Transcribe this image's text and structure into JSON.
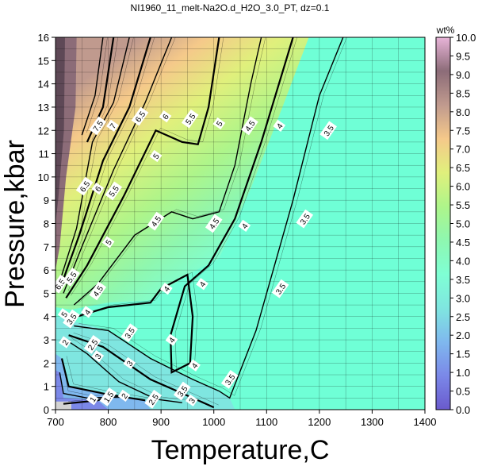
{
  "chart_data": {
    "type": "heatmap",
    "title": "NI1960_11_melt-Na2O.d_H2O_3.0_PT, dz=0.1",
    "xlabel": "Temperature,C",
    "ylabel": "Pressure,kbar",
    "xlim": [
      700,
      1400
    ],
    "ylim": [
      0,
      16
    ],
    "x_ticks": [
      "700",
      "800",
      "900",
      "1000",
      "1100",
      "1200",
      "1300",
      "1400"
    ],
    "y_ticks": [
      "0",
      "1",
      "2",
      "3",
      "4",
      "5",
      "6",
      "7",
      "8",
      "9",
      "10",
      "11",
      "12",
      "13",
      "14",
      "15",
      "16"
    ],
    "grid": true,
    "colorbar": {
      "label": "wt%",
      "range": [
        0.0,
        10.0
      ],
      "ticks": [
        "0.0",
        "0.5",
        "1.0",
        "1.5",
        "2.0",
        "2.5",
        "3.0",
        "3.5",
        "4.0",
        "4.5",
        "5.0",
        "5.5",
        "6.0",
        "6.5",
        "7.0",
        "7.5",
        "8.0",
        "8.5",
        "9.0",
        "9.5",
        "10.0"
      ],
      "colors": [
        "#6a5acd",
        "#7b88e8",
        "#7fb8ee",
        "#7fe6e0",
        "#7fffd4",
        "#8ef7b0",
        "#aef58a",
        "#e0f07c",
        "#f5c98a",
        "#c09a8e",
        "#8c6c78",
        "#e8b4d8"
      ]
    },
    "regions": {
      "subsolidus_fill": "#d3d3d3",
      "high_T_plateau_value": 3.3,
      "high_T_plateau_color": "#6fffd6"
    },
    "contours": [
      {
        "level": 1,
        "points": [
          [
            715,
            0.25
          ],
          [
            780,
            0.4
          ],
          [
            800,
            0.55
          ]
        ]
      },
      {
        "level": 1.5,
        "points": [
          [
            708,
            1.6
          ],
          [
            715,
            0.7
          ],
          [
            760,
            0.5
          ],
          [
            830,
            0.55
          ]
        ]
      },
      {
        "level": 2,
        "points": [
          [
            712,
            2.2
          ],
          [
            725,
            1.0
          ],
          [
            800,
            0.65
          ],
          [
            870,
            0.4
          ]
        ]
      },
      {
        "level": 2.5,
        "points": [
          [
            720,
            3.0
          ],
          [
            760,
            2.4
          ],
          [
            820,
            1.2
          ],
          [
            890,
            0.45
          ],
          [
            940,
            0.3
          ]
        ]
      },
      {
        "level": 3,
        "points": [
          [
            725,
            3.2
          ],
          [
            790,
            2.7
          ],
          [
            880,
            1.3
          ],
          [
            960,
            0.5
          ],
          [
            1000,
            0.1
          ]
        ]
      },
      {
        "level": 3.5,
        "points": [
          [
            735,
            3.6
          ],
          [
            800,
            3.4
          ],
          [
            880,
            2.2
          ],
          [
            960,
            1.3
          ],
          [
            1010,
            0.8
          ],
          [
            1030,
            0.5
          ],
          [
            1080,
            3.4
          ],
          [
            1150,
            9.0
          ],
          [
            1200,
            13.5
          ],
          [
            1245,
            16
          ]
        ]
      },
      {
        "level": 4,
        "points": [
          [
            740,
            4.0
          ],
          [
            800,
            4.4
          ],
          [
            880,
            4.6
          ],
          [
            900,
            5.2
          ],
          [
            950,
            5.8
          ],
          [
            960,
            4.0
          ],
          [
            955,
            2.0
          ],
          [
            920,
            1.6
          ],
          [
            918,
            3.2
          ],
          [
            945,
            5.3
          ],
          [
            990,
            6.2
          ],
          [
            1040,
            8.2
          ],
          [
            1090,
            11.5
          ],
          [
            1130,
            14.5
          ],
          [
            1150,
            16
          ]
        ]
      },
      {
        "level": 4.5,
        "points": [
          [
            735,
            4.5
          ],
          [
            780,
            5.4
          ],
          [
            850,
            7.5
          ],
          [
            920,
            8.5
          ],
          [
            960,
            8.2
          ],
          [
            1010,
            8.5
          ],
          [
            1040,
            10.5
          ],
          [
            1070,
            14.0
          ],
          [
            1090,
            16
          ]
        ]
      },
      {
        "level": 5,
        "points": [
          [
            720,
            4.8
          ],
          [
            760,
            6.2
          ],
          [
            830,
            9.2
          ],
          [
            890,
            12.0
          ],
          [
            940,
            11.5
          ],
          [
            970,
            11.4
          ],
          [
            990,
            13.0
          ],
          [
            1010,
            16
          ]
        ]
      },
      {
        "level": 5.5,
        "points": [
          [
            715,
            5.0
          ],
          [
            750,
            7.0
          ],
          [
            810,
            10.3
          ],
          [
            870,
            13.2
          ],
          [
            920,
            16
          ]
        ]
      },
      {
        "level": 6,
        "points": [
          [
            710,
            5.3
          ],
          [
            745,
            7.5
          ],
          [
            790,
            10.7
          ],
          [
            840,
            13.0
          ],
          [
            880,
            16
          ]
        ]
      },
      {
        "level": 6.5,
        "points": [
          [
            708,
            5.5
          ],
          [
            740,
            7.8
          ],
          [
            770,
            11.5
          ],
          [
            810,
            13.2
          ],
          [
            840,
            16
          ]
        ]
      },
      {
        "level": 7,
        "points": [
          [
            760,
            11.5
          ],
          [
            790,
            13.0
          ],
          [
            810,
            16
          ]
        ]
      },
      {
        "level": 7.5,
        "points": [
          [
            750,
            11.8
          ],
          [
            775,
            13.5
          ],
          [
            790,
            16
          ]
        ]
      }
    ],
    "contour_labels": [
      {
        "text": "1",
        "x": 770,
        "y": 0.45
      },
      {
        "text": "1.5",
        "x": 800,
        "y": 0.55
      },
      {
        "text": "2",
        "x": 830,
        "y": 0.6
      },
      {
        "text": "2.5",
        "x": 885,
        "y": 0.45
      },
      {
        "text": "3",
        "x": 958,
        "y": 0.4
      },
      {
        "text": "3.5",
        "x": 940,
        "y": 0.8
      },
      {
        "text": "3.5",
        "x": 1030,
        "y": 1.3
      },
      {
        "text": "3.5",
        "x": 1126,
        "y": 5.2
      },
      {
        "text": "3.5",
        "x": 1172,
        "y": 8.2
      },
      {
        "text": "3.5",
        "x": 1217,
        "y": 12.0
      },
      {
        "text": "3",
        "x": 840,
        "y": 2.0
      },
      {
        "text": "3.5",
        "x": 840,
        "y": 3.3
      },
      {
        "text": "2",
        "x": 718,
        "y": 2.9
      },
      {
        "text": "2.5",
        "x": 770,
        "y": 2.8
      },
      {
        "text": "3",
        "x": 780,
        "y": 2.3
      },
      {
        "text": "3.5",
        "x": 730,
        "y": 3.9
      },
      {
        "text": "5",
        "x": 716,
        "y": 4.1
      },
      {
        "text": "4",
        "x": 760,
        "y": 4.2
      },
      {
        "text": "4.5",
        "x": 780,
        "y": 5.1
      },
      {
        "text": "6.5",
        "x": 708,
        "y": 5.4
      },
      {
        "text": "5.5",
        "x": 730,
        "y": 5.7
      },
      {
        "text": "4",
        "x": 910,
        "y": 5.2
      },
      {
        "text": "4",
        "x": 978,
        "y": 5.4
      },
      {
        "text": "4",
        "x": 920,
        "y": 3.0
      },
      {
        "text": "4",
        "x": 963,
        "y": 1.9
      },
      {
        "text": "4",
        "x": 1058,
        "y": 7.9
      },
      {
        "text": "4",
        "x": 1124,
        "y": 12.2
      },
      {
        "text": "4.5",
        "x": 890,
        "y": 8.1
      },
      {
        "text": "4.5",
        "x": 1000,
        "y": 8.0
      },
      {
        "text": "4.5",
        "x": 1068,
        "y": 12.2
      },
      {
        "text": "5",
        "x": 800,
        "y": 7.2
      },
      {
        "text": "5",
        "x": 890,
        "y": 10.9
      },
      {
        "text": "5",
        "x": 1010,
        "y": 12.3
      },
      {
        "text": "5.5",
        "x": 810,
        "y": 9.4
      },
      {
        "text": "5.5",
        "x": 955,
        "y": 12.5
      },
      {
        "text": "6",
        "x": 780,
        "y": 9.5
      },
      {
        "text": "6",
        "x": 908,
        "y": 12.6
      },
      {
        "text": "6.5",
        "x": 755,
        "y": 9.6
      },
      {
        "text": "6.5",
        "x": 860,
        "y": 12.6
      },
      {
        "text": "7",
        "x": 808,
        "y": 12.2
      },
      {
        "text": "7.5",
        "x": 780,
        "y": 12.2
      }
    ]
  }
}
